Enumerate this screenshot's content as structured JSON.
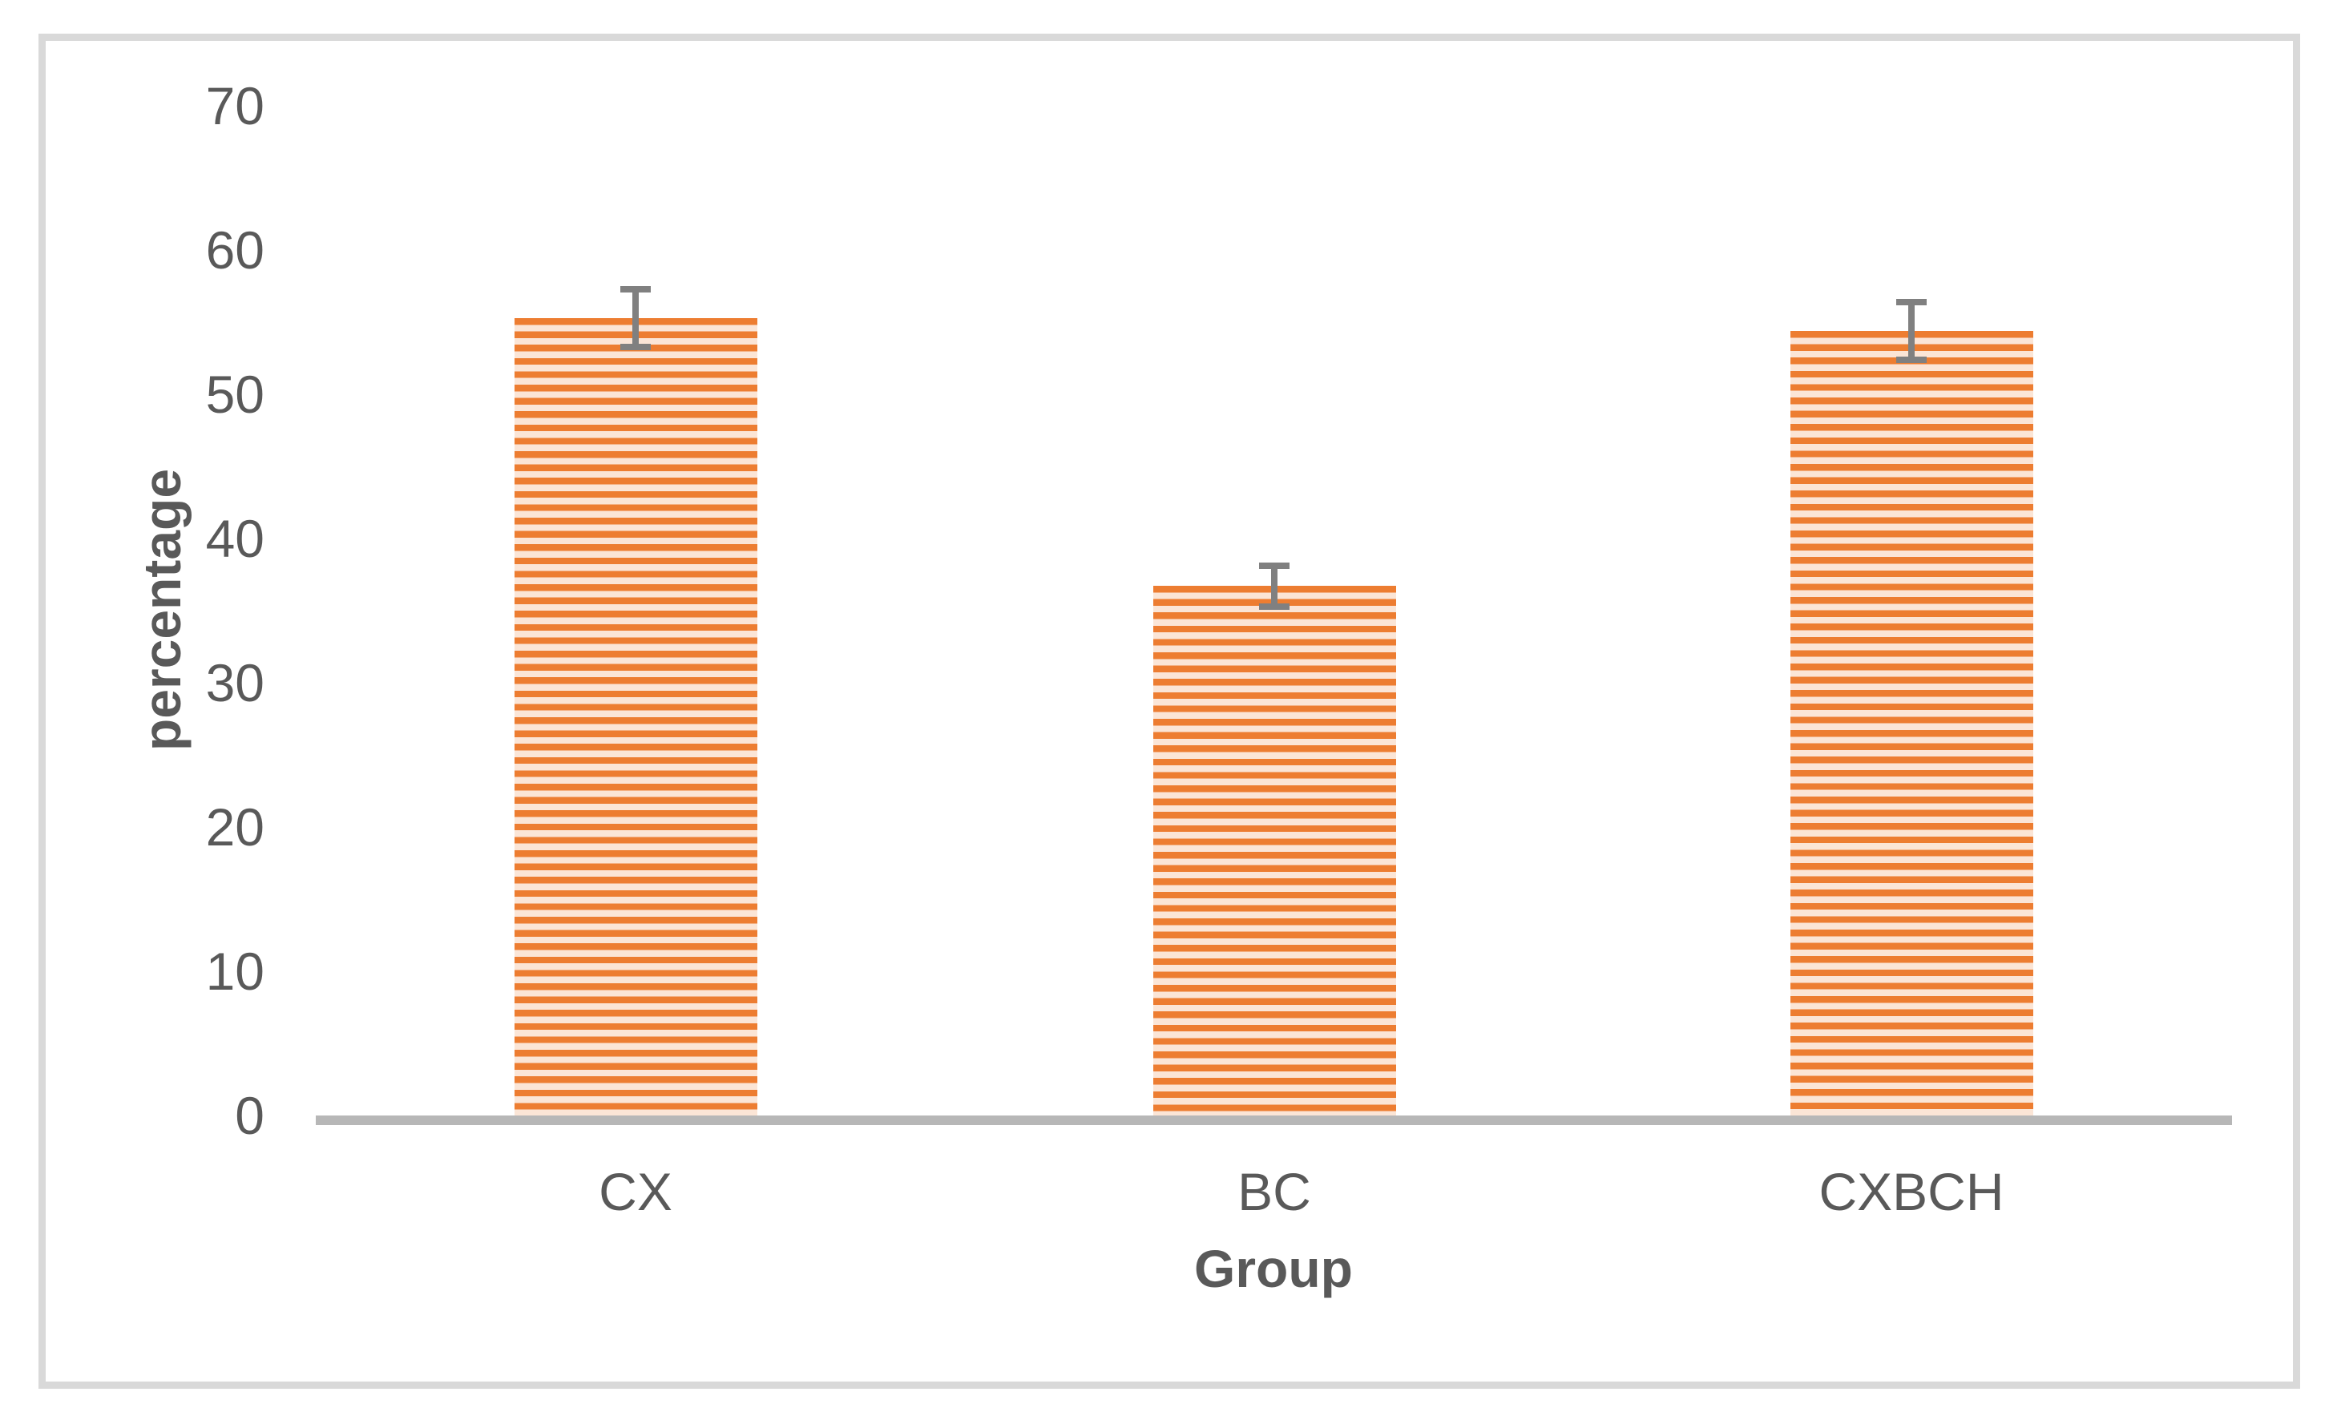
{
  "chart_data": {
    "type": "bar",
    "title": "",
    "categories": [
      "CX",
      "BC",
      "CXBCH"
    ],
    "series": [
      {
        "name": "percentage",
        "values": [
          55.3,
          36.7,
          54.4
        ],
        "error_bars": [
          2.0,
          1.4,
          2.0
        ]
      }
    ],
    "xlabel": "Group",
    "ylabel": "percentage",
    "ylim": [
      0,
      70
    ],
    "yticks": [
      0,
      10,
      20,
      30,
      40,
      50,
      60,
      70
    ],
    "grid": "off",
    "legend": "none",
    "bar_pattern": "horizontal-stripes",
    "colors": {
      "bar_stripe": "#ED7D31",
      "bar_background": "#FBE5D6",
      "error_bar": "#808080",
      "axis_line": "#B7B7B7",
      "text": "#595959",
      "frame_border": "#D9D9D9"
    }
  }
}
